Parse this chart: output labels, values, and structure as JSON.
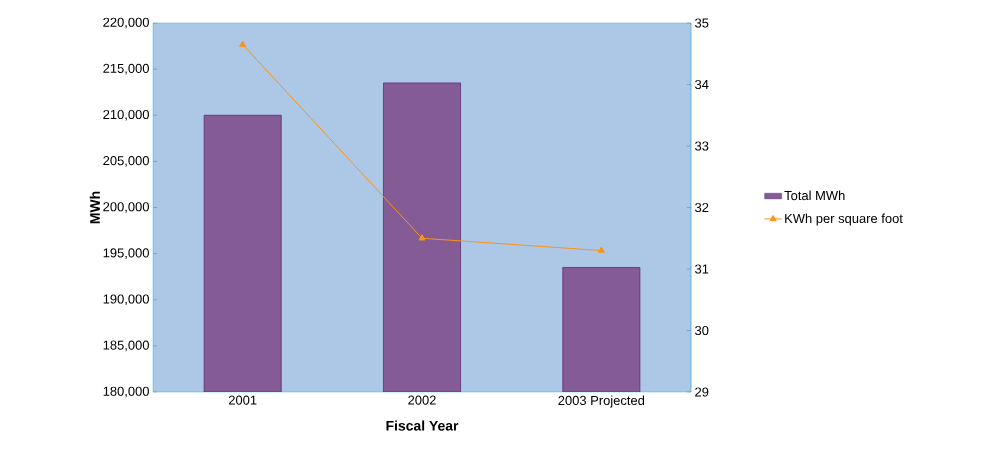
{
  "chart_data": {
    "type": "bar",
    "xlabel": "Fiscal Year",
    "ylabel": "MWh",
    "categories": [
      "2001",
      "2002",
      "2003 Projected"
    ],
    "series": [
      {
        "name": "Total MWh",
        "color": "#845b94",
        "values": [
          210000,
          213500,
          193500
        ]
      },
      {
        "name": "KWh per square foot",
        "type": "line",
        "axis": "y2",
        "color": "#f7941d",
        "values": [
          34.65,
          31.5,
          31.3
        ]
      }
    ],
    "ylim": [
      180000,
      220000
    ],
    "yticks": [
      {
        "value": 180000,
        "label": "180,000"
      },
      {
        "value": 185000,
        "label": "185,000"
      },
      {
        "value": 190000,
        "label": "190,000"
      },
      {
        "value": 195000,
        "label": "195,000"
      },
      {
        "value": 200000,
        "label": "200,000"
      },
      {
        "value": 205000,
        "label": "205,000"
      },
      {
        "value": 210000,
        "label": "210,000"
      },
      {
        "value": 215000,
        "label": "215,000"
      },
      {
        "value": 220000,
        "label": "220,000"
      }
    ],
    "y2lim": [
      29,
      35
    ],
    "y2ticks": [
      29,
      30,
      31,
      32,
      33,
      34,
      35
    ],
    "marker": "triangle",
    "legend": "right",
    "grid": false
  }
}
